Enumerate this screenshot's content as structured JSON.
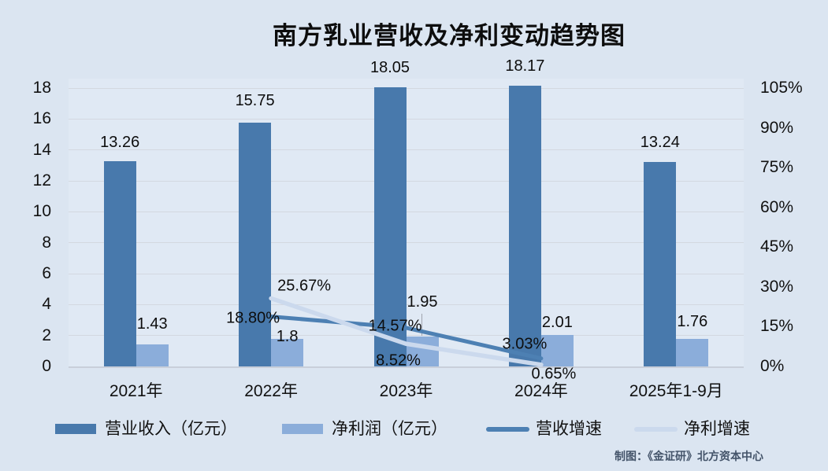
{
  "title": "南方乳业营收及净利变动趋势图",
  "caption": "制图：《金证研》北方资本中心",
  "colors": {
    "background": "#dbe5f1",
    "plot_background": "#e0e9f4",
    "revenue_bar": "#4879ac",
    "profit_bar": "#8badda",
    "revenue_growth_line": "#4d80b3",
    "profit_growth_line": "#cbd9ed",
    "gridline": "#d3d8e0",
    "axis_line": "#c9cfda",
    "label_text": "#0d0d0d",
    "caption_text": "#44546a"
  },
  "chart_data": {
    "type": "bar+line combo",
    "title": "南方乳业营收及净利变动趋势图",
    "xlabel": "",
    "ylabel_left": "",
    "ylabel_right": "",
    "grid": true,
    "legend_position": "bottom",
    "categories": [
      "2021年",
      "2022年",
      "2023年",
      "2024年",
      "2025年1-9月"
    ],
    "bar_series": [
      {
        "name": "营业收入（亿元）",
        "axis": "left",
        "color": "#4879ac",
        "values": [
          13.26,
          15.75,
          18.05,
          18.17,
          13.24
        ],
        "labels": [
          "13.26",
          "15.75",
          "18.05",
          "18.17",
          "13.24"
        ]
      },
      {
        "name": "净利润（亿元）",
        "axis": "left",
        "color": "#8badda",
        "values": [
          1.43,
          1.8,
          1.95,
          2.01,
          1.76
        ],
        "labels": [
          "1.43",
          "1.8",
          "1.95",
          "2.01",
          "1.76"
        ]
      }
    ],
    "line_series": [
      {
        "name": "营收增速",
        "axis": "right",
        "color": "#4d80b3",
        "values": [
          null,
          18.8,
          14.57,
          3.03,
          null
        ],
        "labels": [
          null,
          "18.80%",
          "14.57%",
          "3.03%",
          null
        ]
      },
      {
        "name": "净利增速",
        "axis": "right",
        "color": "#cbd9ed",
        "values": [
          null,
          25.67,
          8.52,
          0.65,
          null
        ],
        "labels": [
          null,
          "25.67%",
          "8.52%",
          "0.65%",
          null
        ]
      }
    ],
    "left_axis": {
      "min": 0,
      "max": 18,
      "step": 2,
      "ticks": [
        "0",
        "2",
        "4",
        "6",
        "8",
        "10",
        "12",
        "14",
        "16",
        "18"
      ]
    },
    "right_axis": {
      "min": 0,
      "max": 105,
      "step": 15,
      "ticks": [
        "0%",
        "15%",
        "30%",
        "45%",
        "60%",
        "75%",
        "90%",
        "105%"
      ]
    },
    "legend": [
      {
        "label": "营业收入（亿元）",
        "marker": "rect",
        "color": "#4879ac"
      },
      {
        "label": "净利润（亿元）",
        "marker": "rect",
        "color": "#8badda"
      },
      {
        "label": "营收增速",
        "marker": "line",
        "color": "#4d80b3"
      },
      {
        "label": "净利增速",
        "marker": "line",
        "color": "#cbd9ed"
      }
    ]
  }
}
